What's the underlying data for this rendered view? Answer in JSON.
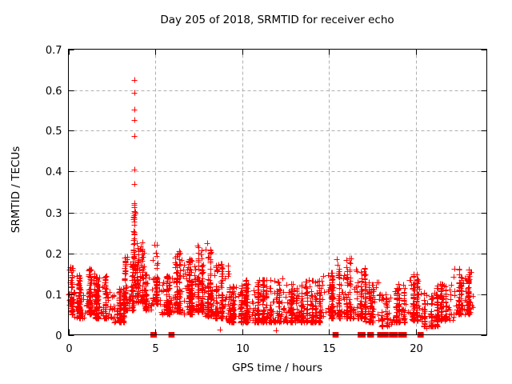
{
  "chart_data": {
    "type": "scatter",
    "title": "Day 205 of 2018, SRMTID for receiver echo",
    "xlabel": "GPS time / hours",
    "ylabel": "SRMTID / TECUs",
    "xlim": [
      0,
      24.1
    ],
    "ylim": [
      0,
      0.7
    ],
    "xticks": [
      {
        "v": 0,
        "label": "0"
      },
      {
        "v": 5,
        "label": "5"
      },
      {
        "v": 10,
        "label": "10"
      },
      {
        "v": 15,
        "label": "15"
      },
      {
        "v": 20,
        "label": "20"
      }
    ],
    "yticks": [
      {
        "v": 0,
        "label": "0"
      },
      {
        "v": 0.1,
        "label": "0.1"
      },
      {
        "v": 0.2,
        "label": "0.2"
      },
      {
        "v": 0.3,
        "label": "0.3"
      },
      {
        "v": 0.4,
        "label": "0.4"
      },
      {
        "v": 0.5,
        "label": "0.5"
      },
      {
        "v": 0.6,
        "label": "0.6"
      },
      {
        "v": 0.7,
        "label": "0.7"
      }
    ],
    "grid": true,
    "legend": false,
    "marker": {
      "shape": "plus",
      "color": "#ff0000",
      "size": 7
    },
    "grid_color": "#b0b0b0",
    "border_color": "#000000",
    "spike_points": [
      [
        3.8,
        0.625
      ],
      [
        3.8,
        0.594
      ],
      [
        3.81,
        0.552
      ],
      [
        3.8,
        0.527
      ],
      [
        3.8,
        0.488
      ],
      [
        3.79,
        0.404
      ],
      [
        3.8,
        0.369
      ],
      [
        3.8,
        0.323
      ],
      [
        3.81,
        0.312
      ],
      [
        3.79,
        0.303
      ],
      [
        3.8,
        0.294
      ],
      [
        3.82,
        0.284
      ],
      [
        3.8,
        0.278
      ],
      [
        3.79,
        0.247
      ],
      [
        3.81,
        0.237
      ],
      [
        3.8,
        0.225
      ]
    ],
    "outlier_points": [
      [
        8.0,
        0.225
      ],
      [
        8.75,
        0.012
      ],
      [
        11.95,
        0.01
      ],
      [
        20.6,
        0.016
      ],
      [
        15.45,
        0.185
      ],
      [
        9.17,
        0.17
      ],
      [
        9.17,
        0.155
      ],
      [
        9.17,
        0.145
      ],
      [
        0.1,
        0.165
      ],
      [
        16.6,
        0.155
      ],
      [
        19.9,
        0.145
      ],
      [
        22.5,
        0.162
      ]
    ],
    "zero_runs": [
      [
        4.84,
        4.98
      ],
      [
        5.88,
        6.0
      ],
      [
        15.33,
        15.45
      ],
      [
        16.78,
        17.0
      ],
      [
        17.33,
        17.37
      ],
      [
        17.44,
        17.48
      ],
      [
        17.9,
        18.33
      ],
      [
        18.58,
        18.87
      ],
      [
        19.12,
        19.38
      ],
      [
        20.22,
        20.35
      ]
    ],
    "clusters": [
      {
        "x": [
          0.02,
          0.35
        ],
        "y": [
          0.05,
          0.165
        ],
        "n": 55,
        "p": 1.6
      },
      {
        "x": [
          0.3,
          1.05
        ],
        "y": [
          0.04,
          0.15
        ],
        "n": 120,
        "p": 2.0
      },
      {
        "x": [
          1.0,
          1.55
        ],
        "y": [
          0.05,
          0.165
        ],
        "n": 95,
        "p": 2.0
      },
      {
        "x": [
          1.5,
          2.65
        ],
        "y": [
          0.04,
          0.145
        ],
        "n": 170,
        "p": 2.2
      },
      {
        "x": [
          2.6,
          3.25
        ],
        "y": [
          0.03,
          0.115
        ],
        "n": 95,
        "p": 1.8
      },
      {
        "x": [
          3.25,
          3.75
        ],
        "y": [
          0.06,
          0.2
        ],
        "n": 90,
        "p": 2.2
      },
      {
        "x": [
          3.74,
          3.88
        ],
        "y": [
          0.12,
          0.32
        ],
        "n": 40,
        "p": 1.9
      },
      {
        "x": [
          3.85,
          4.4
        ],
        "y": [
          0.08,
          0.235
        ],
        "n": 95,
        "p": 2.0
      },
      {
        "x": [
          4.4,
          4.8
        ],
        "y": [
          0.06,
          0.155
        ],
        "n": 50,
        "p": 1.7
      },
      {
        "x": [
          4.78,
          5.3
        ],
        "y": [
          0.075,
          0.225
        ],
        "n": 75,
        "p": 1.9
      },
      {
        "x": [
          5.3,
          5.85
        ],
        "y": [
          0.05,
          0.145
        ],
        "n": 70,
        "p": 1.8
      },
      {
        "x": [
          5.8,
          6.45
        ],
        "y": [
          0.055,
          0.215
        ],
        "n": 115,
        "p": 2.0
      },
      {
        "x": [
          6.4,
          7.1
        ],
        "y": [
          0.05,
          0.185
        ],
        "n": 115,
        "p": 2.0
      },
      {
        "x": [
          7.05,
          7.75
        ],
        "y": [
          0.055,
          0.225
        ],
        "n": 115,
        "p": 2.0
      },
      {
        "x": [
          7.7,
          8.45
        ],
        "y": [
          0.045,
          0.21
        ],
        "n": 115,
        "p": 2.1
      },
      {
        "x": [
          8.4,
          9.25
        ],
        "y": [
          0.04,
          0.175
        ],
        "n": 105,
        "p": 2.1
      },
      {
        "x": [
          9.2,
          10.25
        ],
        "y": [
          0.03,
          0.12
        ],
        "n": 150,
        "p": 1.9
      },
      {
        "x": [
          10.2,
          11.25
        ],
        "y": [
          0.03,
          0.135
        ],
        "n": 155,
        "p": 2.0
      },
      {
        "x": [
          11.2,
          12.45
        ],
        "y": [
          0.03,
          0.14
        ],
        "n": 165,
        "p": 2.1
      },
      {
        "x": [
          12.4,
          13.55
        ],
        "y": [
          0.03,
          0.125
        ],
        "n": 150,
        "p": 1.9
      },
      {
        "x": [
          13.5,
          14.65
        ],
        "y": [
          0.03,
          0.135
        ],
        "n": 150,
        "p": 2.0
      },
      {
        "x": [
          14.6,
          15.3
        ],
        "y": [
          0.04,
          0.155
        ],
        "n": 90,
        "p": 1.9
      },
      {
        "x": [
          15.3,
          16.35
        ],
        "y": [
          0.04,
          0.19
        ],
        "n": 115,
        "p": 2.1
      },
      {
        "x": [
          16.3,
          17.15
        ],
        "y": [
          0.04,
          0.165
        ],
        "n": 90,
        "p": 2.1
      },
      {
        "x": [
          17.1,
          17.95
        ],
        "y": [
          0.03,
          0.135
        ],
        "n": 80,
        "p": 1.9
      },
      {
        "x": [
          17.9,
          18.65
        ],
        "y": [
          0.02,
          0.1
        ],
        "n": 55,
        "p": 1.7
      },
      {
        "x": [
          18.6,
          19.55
        ],
        "y": [
          0.03,
          0.125
        ],
        "n": 90,
        "p": 1.8
      },
      {
        "x": [
          19.5,
          20.35
        ],
        "y": [
          0.035,
          0.15
        ],
        "n": 100,
        "p": 1.9
      },
      {
        "x": [
          20.35,
          21.25
        ],
        "y": [
          0.02,
          0.105
        ],
        "n": 85,
        "p": 1.7
      },
      {
        "x": [
          21.2,
          22.25
        ],
        "y": [
          0.035,
          0.125
        ],
        "n": 110,
        "p": 1.8
      },
      {
        "x": [
          22.2,
          23.3
        ],
        "y": [
          0.05,
          0.165
        ],
        "n": 135,
        "p": 1.8
      }
    ]
  }
}
